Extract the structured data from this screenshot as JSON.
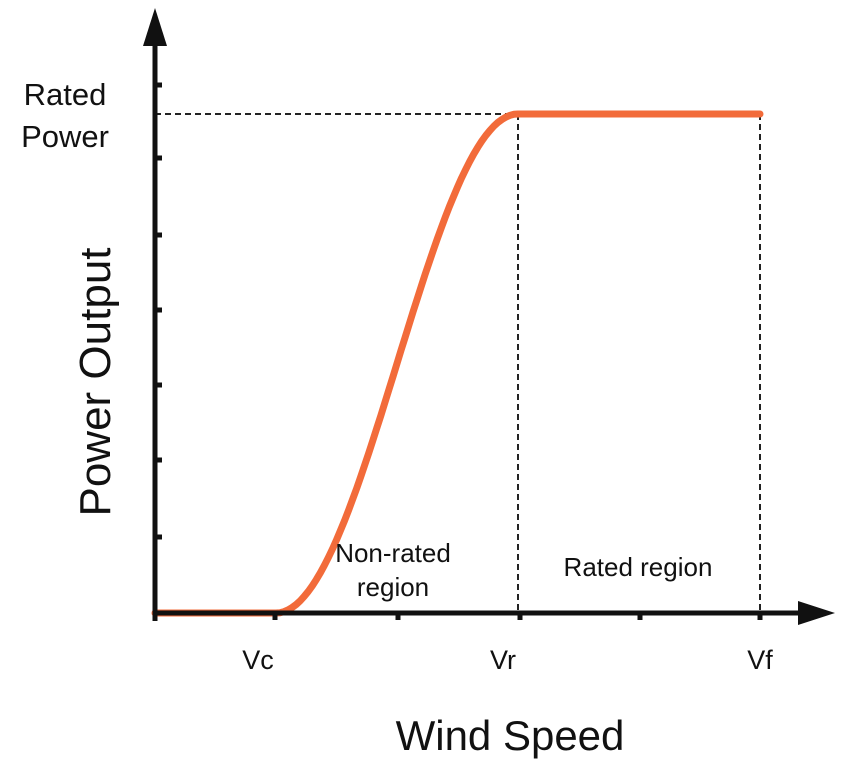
{
  "chart_data": {
    "type": "line",
    "xlabel": "Wind Speed",
    "ylabel": "Power Output",
    "rated_power_label": [
      "Rated",
      "Power"
    ],
    "x_ticks": [
      {
        "label": "Vc",
        "value": 1
      },
      {
        "label": "Vr",
        "value": 3
      },
      {
        "label": "Vf",
        "value": 5
      }
    ],
    "xlim": [
      0,
      5.5
    ],
    "ylim": [
      0,
      1.1
    ],
    "rated_power": 1.0,
    "series": [
      {
        "color": "#f26b3a",
        "x": [
          0,
          1,
          1.5,
          2,
          2.5,
          3,
          5
        ],
        "y": [
          0,
          0,
          0.18,
          0.5,
          0.82,
          1.0,
          1.0
        ]
      }
    ],
    "regions": [
      {
        "label": [
          "Non-rated",
          "region"
        ],
        "from": 1,
        "to": 3
      },
      {
        "label": [
          "Rated region"
        ],
        "from": 3,
        "to": 5
      }
    ],
    "reference_lines": [
      "rated-power-horizontal",
      "vr-vertical",
      "vf-vertical"
    ],
    "grid": false,
    "legend": "none",
    "axis_color": "#111111"
  }
}
